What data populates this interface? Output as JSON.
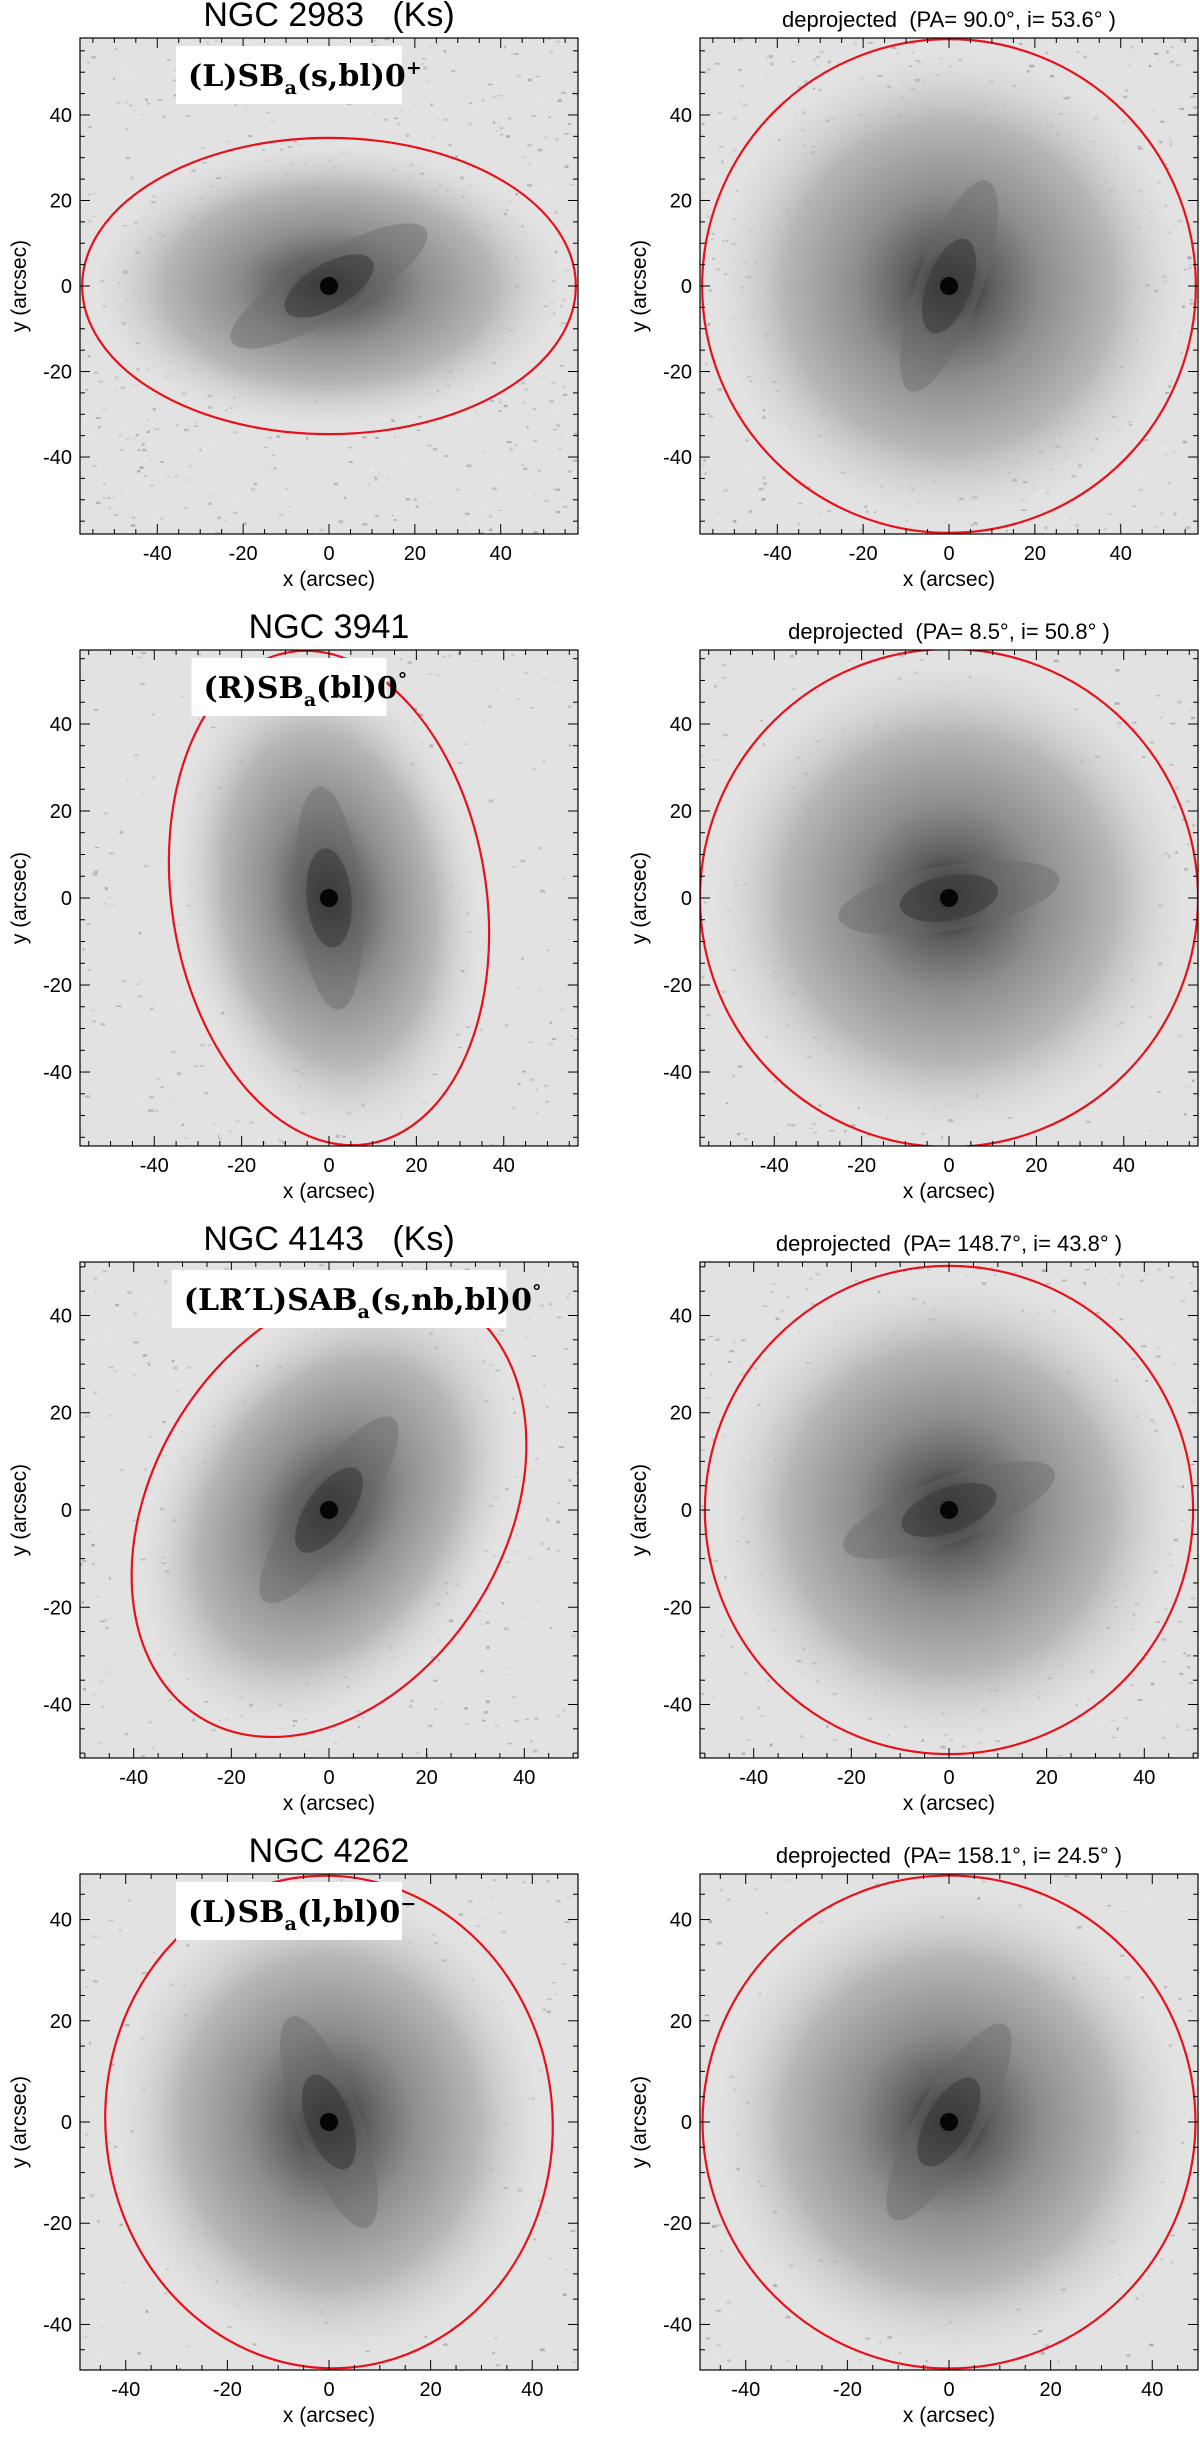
{
  "panels": [
    {
      "id": "ngc2983",
      "title": "NGC 2983   (Ks)",
      "right_title": "deprojected  (PA= 90.0°, i= 53.6° )",
      "classification": {
        "pre": "(L)SB",
        "sub": "a",
        "mid": "(s,bl)0",
        "sup": "+"
      },
      "lim": 58,
      "ticks": [
        -40,
        -20,
        0,
        20,
        40
      ],
      "xlabel": "x (arcsec)",
      "ylabel": "y (arcsec)",
      "noise": 0.55,
      "ellipse": {
        "a": 57.5,
        "b": 34.5,
        "angle": 0
      },
      "deproj_ellipse": {
        "a": 57.5,
        "b": 57.5,
        "angle": 0
      },
      "bar_angle": 30,
      "deproj_bar_angle": 70
    },
    {
      "id": "ngc3941",
      "title": "NGC 3941",
      "right_title": "deprojected  (PA= 8.5°, i= 50.8° )",
      "classification": {
        "pre": "(R)SB",
        "sub": "a",
        "mid": "(bl)0",
        "sup": "°"
      },
      "lim": 57,
      "ticks": [
        -40,
        -20,
        0,
        20,
        40
      ],
      "xlabel": "x (arcsec)",
      "ylabel": "y (arcsec)",
      "noise": 0.25,
      "ellipse": {
        "a": 57,
        "b": 36,
        "angle": 99
      },
      "deproj_ellipse": {
        "a": 57,
        "b": 57,
        "angle": 0
      },
      "bar_angle": 95,
      "deproj_bar_angle": 10
    },
    {
      "id": "ngc4143",
      "title": "NGC 4143   (Ks)",
      "right_title": "deprojected  (PA= 148.7°, i= 43.8° )",
      "classification": {
        "pre": "(LR′L)SAB",
        "sub": "a",
        "mid": "(s,nb,bl)0",
        "sup": "°"
      },
      "lim": 51,
      "ticks": [
        -40,
        -20,
        0,
        20,
        40
      ],
      "xlabel": "x (arcsec)",
      "ylabel": "y (arcsec)",
      "noise": 0.35,
      "ellipse": {
        "a": 50,
        "b": 36,
        "angle": 58
      },
      "deproj_ellipse": {
        "a": 50,
        "b": 50,
        "angle": 0
      },
      "bar_angle": 55,
      "deproj_bar_angle": 20
    },
    {
      "id": "ngc4262",
      "title": "NGC 4262",
      "right_title": "deprojected  (PA= 158.1°, i= 24.5° )",
      "classification": {
        "pre": "(L)SB",
        "sub": "a",
        "mid": "(l,bl)0",
        "sup": "−"
      },
      "lim": 49,
      "ticks": [
        -40,
        -20,
        0,
        20,
        40
      ],
      "xlabel": "x (arcsec)",
      "ylabel": "y (arcsec)",
      "noise": 0.2,
      "ellipse": {
        "a": 48.5,
        "b": 44,
        "angle": 95
      },
      "deproj_ellipse": {
        "a": 48.5,
        "b": 48.5,
        "angle": 0
      },
      "bar_angle": 110,
      "deproj_bar_angle": 60
    }
  ],
  "colors": {
    "ellipse": "#e8101a",
    "axes": "#000000"
  }
}
